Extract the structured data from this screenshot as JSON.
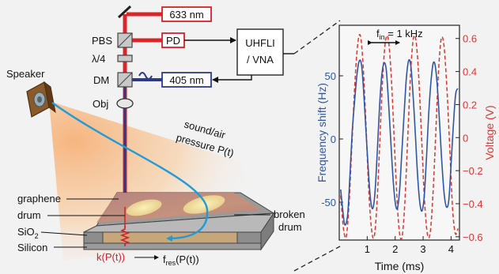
{
  "setup": {
    "laser_red": "633 nm",
    "laser_blue": "405 nm",
    "photodetector": "PD",
    "pbs": "PBS",
    "quarter_wave": "λ/4",
    "dichroic": "DM",
    "objective": "Obj",
    "lockin_line1": "UHFLI",
    "lockin_line2": "/ VNA",
    "speaker": "Speaker",
    "sound_line1": "sound/air",
    "sound_line2": "pressure P(t)",
    "graphene": "graphene",
    "drum": "drum",
    "broken_line1": "broken",
    "broken_line2": "drum",
    "sio2": "SiO",
    "sio2_sub": "2",
    "silicon": "Silicon",
    "spring_label": "k(P(t))",
    "fres_main": "f",
    "fres_sub": "res",
    "fres_tail": "(P(t))"
  },
  "colors": {
    "red_beam": "#d9262b",
    "blue_beam": "#2b3a8c",
    "frequency_trace": "#2f56a6",
    "voltage_trace": "#e0352f",
    "arrow_cyan": "#1f9bd7",
    "box_red": "#d42027"
  },
  "chart_data": {
    "type": "line",
    "annotation": {
      "label_main": "f",
      "label_sub": "in",
      "label_tail": " = 1 kHz"
    },
    "xlabel": "Time (ms)",
    "ylabel_left": "Frequency shift (Hz)",
    "ylabel_right": "Voltage (V)",
    "xlim": [
      0,
      4.3
    ],
    "ylim_left": [
      -80,
      90
    ],
    "ylim_right": [
      -0.62,
      0.68
    ],
    "x_ticks": [
      1,
      2,
      3,
      4
    ],
    "y_ticks_left": [
      -50,
      0,
      50
    ],
    "y_ticks_right": [
      -0.6,
      -0.4,
      -0.2,
      0,
      0.2,
      0.4,
      0.6
    ],
    "y_tick_labels_right": [
      "−0.6",
      "−0.4",
      "−0.2",
      "0",
      "0.2",
      "0.4",
      "0.6"
    ],
    "series": [
      {
        "axis": "left",
        "style": "solid",
        "x": [
          0.05,
          0.12,
          0.2,
          0.3,
          0.38,
          0.46,
          0.55,
          0.64,
          0.72,
          0.8,
          0.88,
          0.96,
          1.04,
          1.12,
          1.2,
          1.28,
          1.36,
          1.44,
          1.52,
          1.6,
          1.68,
          1.76,
          1.84,
          1.92,
          2.0,
          2.08,
          2.16,
          2.24,
          2.32,
          2.4,
          2.48,
          2.56,
          2.64,
          2.72,
          2.8,
          2.88,
          2.96,
          3.04,
          3.12,
          3.2,
          3.28,
          3.36,
          3.44,
          3.52,
          3.6,
          3.68,
          3.76,
          3.84,
          3.92,
          4.0,
          4.08,
          4.16,
          4.24
        ],
        "y": [
          -40,
          -55,
          -68,
          -60,
          -30,
          5,
          30,
          52,
          62,
          58,
          35,
          5,
          -25,
          -48,
          -55,
          -42,
          -10,
          25,
          50,
          60,
          55,
          30,
          0,
          -30,
          -50,
          -55,
          -40,
          -10,
          20,
          48,
          62,
          58,
          35,
          5,
          -28,
          -50,
          -57,
          -45,
          -15,
          20,
          45,
          60,
          57,
          38,
          8,
          -22,
          -45,
          -54,
          -48,
          -20,
          10,
          35,
          40
        ]
      },
      {
        "axis": "right",
        "style": "dashed",
        "x": [
          0.05,
          0.15,
          0.25,
          0.35,
          0.45,
          0.55,
          0.65,
          0.75,
          0.85,
          0.95,
          1.05,
          1.15,
          1.25,
          1.35,
          1.45,
          1.55,
          1.65,
          1.75,
          1.85,
          1.95,
          2.05,
          2.15,
          2.25,
          2.35,
          2.45,
          2.55,
          2.65,
          2.75,
          2.85,
          2.95,
          3.05,
          3.15,
          3.25,
          3.35,
          3.45,
          3.55,
          3.65,
          3.75,
          3.85,
          3.95,
          4.05,
          4.15,
          4.25
        ],
        "y": [
          -0.35,
          -0.55,
          -0.6,
          -0.4,
          -0.05,
          0.3,
          0.55,
          0.62,
          0.45,
          0.1,
          -0.3,
          -0.55,
          -0.6,
          -0.4,
          -0.02,
          0.35,
          0.58,
          0.6,
          0.4,
          0.05,
          -0.32,
          -0.57,
          -0.6,
          -0.38,
          0.0,
          0.38,
          0.6,
          0.58,
          0.35,
          -0.02,
          -0.38,
          -0.58,
          -0.58,
          -0.35,
          0.02,
          0.4,
          0.6,
          0.55,
          0.3,
          -0.05,
          -0.42,
          -0.58,
          -0.55
        ]
      }
    ]
  }
}
